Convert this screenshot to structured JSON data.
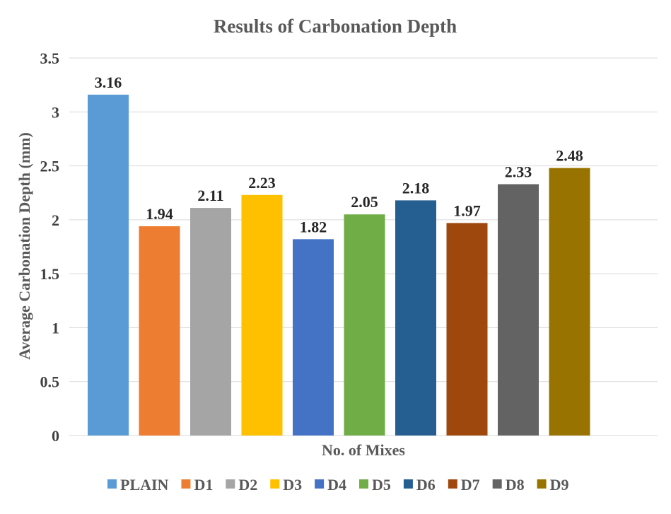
{
  "chart_data": {
    "type": "bar",
    "title": "Results of Carbonation Depth",
    "xlabel": "No. of Mixes",
    "ylabel": "Average Carbonation Depth (mm)",
    "ylim": [
      0,
      3.5
    ],
    "yticks": [
      "0",
      "0.5",
      "1",
      "1.5",
      "2",
      "2.5",
      "3",
      "3.5"
    ],
    "grid": true,
    "legend_position": "bottom",
    "categories": [
      "PLAIN",
      "D1",
      "D2",
      "D3",
      "D4",
      "D5",
      "D6",
      "D7",
      "D8",
      "D9"
    ],
    "values": [
      3.16,
      1.94,
      2.11,
      2.23,
      1.82,
      2.05,
      2.18,
      1.97,
      2.33,
      2.48
    ],
    "value_labels": [
      "3.16",
      "1.94",
      "2.11",
      "2.23",
      "1.82",
      "2.05",
      "2.18",
      "1.97",
      "2.33",
      "2.48"
    ],
    "colors": [
      "#5b9bd5",
      "#ed7d31",
      "#a5a5a5",
      "#ffc000",
      "#4472c4",
      "#70ad47",
      "#255e91",
      "#9e480e",
      "#636363",
      "#997300"
    ]
  }
}
